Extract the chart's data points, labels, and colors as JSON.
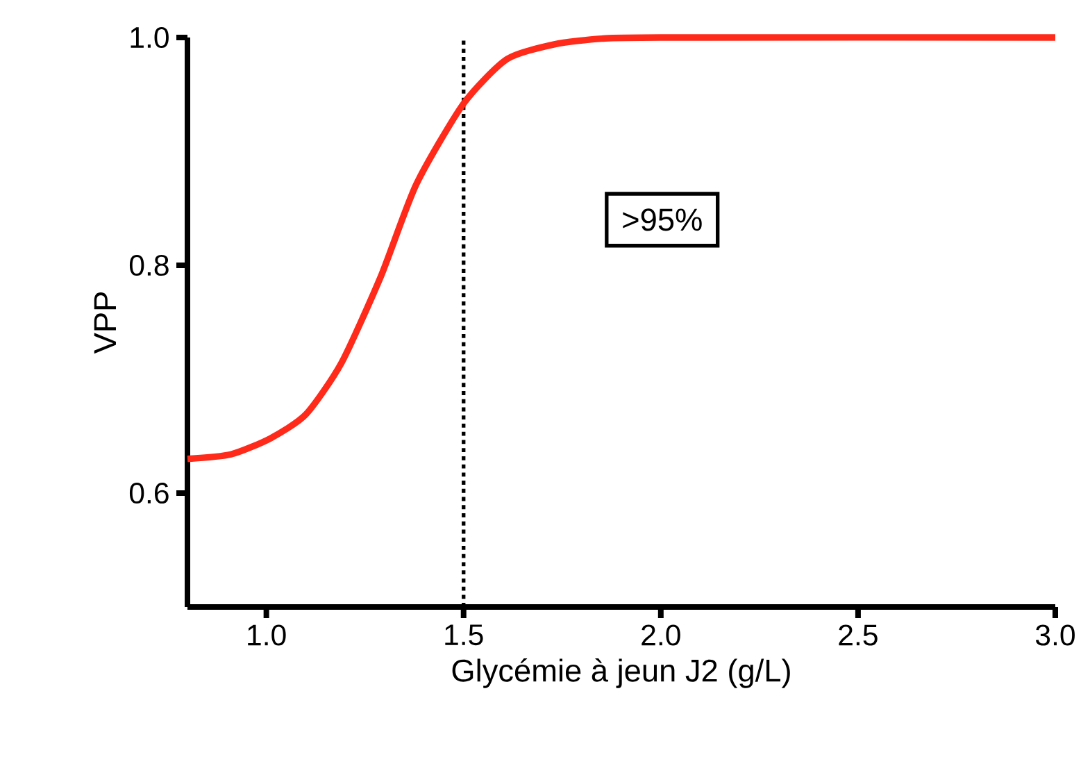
{
  "chart_data": {
    "type": "line",
    "xlabel": "Glycémie à jeun J2 (g/L)",
    "ylabel": "VPP",
    "x": [
      0.8,
      0.91,
      1.01,
      1.1,
      1.19,
      1.29,
      1.38,
      1.5,
      1.61,
      1.73,
      1.85,
      2.0,
      3.0
    ],
    "values": [
      0.63,
      0.634,
      0.648,
      0.669,
      0.714,
      0.79,
      0.871,
      0.942,
      0.981,
      0.994,
      0.999,
      1.0,
      1.0
    ],
    "color": "#ff2a1a",
    "xlim": [
      0.8,
      3.0
    ],
    "ylim": [
      0.5,
      1.0
    ],
    "xticks": [
      {
        "value": 1.0,
        "label": "1.0"
      },
      {
        "value": 1.5,
        "label": "1.5"
      },
      {
        "value": 2.0,
        "label": "2.0"
      },
      {
        "value": 2.5,
        "label": "2.5"
      },
      {
        "value": 3.0,
        "label": "3.0"
      }
    ],
    "yticks": [
      {
        "value": 0.6,
        "label": "0.6"
      },
      {
        "value": 0.8,
        "label": "0.8"
      },
      {
        "value": 1.0,
        "label": "1.0"
      }
    ],
    "ref_lines": [
      {
        "axis": "x",
        "value": 1.5,
        "line_style": "dotted",
        "color": "#000000"
      }
    ],
    "annotations": [
      ">95%"
    ]
  }
}
